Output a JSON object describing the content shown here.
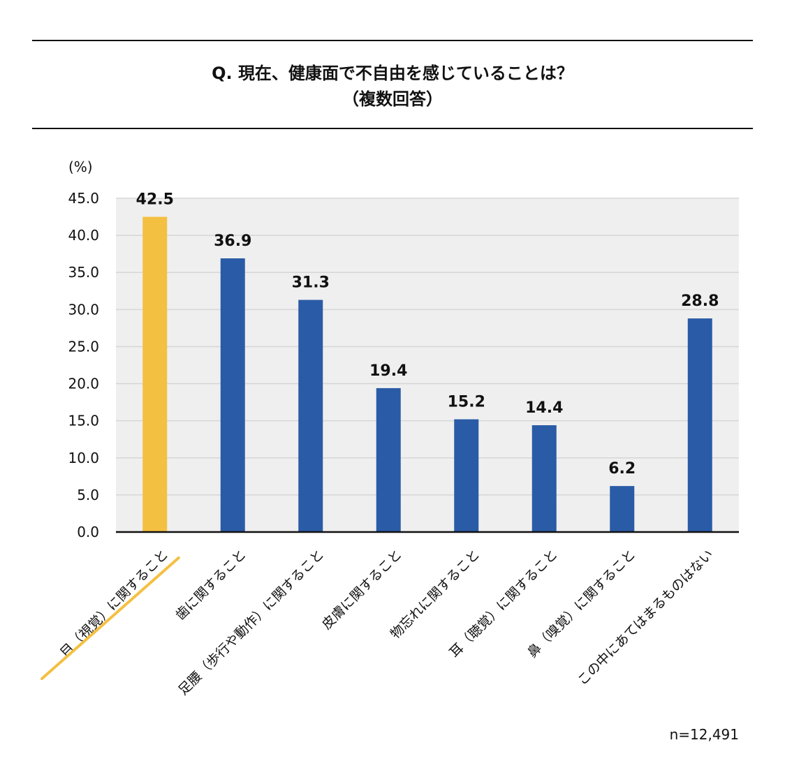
{
  "question": {
    "line1": "Q.  現在、健康面で不自由を感じていることは？",
    "line2": "（複数回答）"
  },
  "sample_note": "n=12,491",
  "colors": {
    "highlight": "#F4C042",
    "bar": "#2A5BA6",
    "plot_bg": "#EFEFEF",
    "grid": "#D6D6D6"
  },
  "chart_data": {
    "type": "bar",
    "title": "Q.  現在、健康面で不自由を感じていることは？（複数回答）",
    "ylabel": "(%)",
    "ylim": [
      0,
      45
    ],
    "yticks": [
      "0.0",
      "5.0",
      "10.0",
      "15.0",
      "20.0",
      "25.0",
      "30.0",
      "35.0",
      "40.0",
      "45.0"
    ],
    "grid": true,
    "categories": [
      "目（視覚）に関すること",
      "歯に関すること",
      "足腰（歩行や動作）に関すること",
      "皮膚に関すること",
      "物忘れに関すること",
      "耳（聴覚）に関すること",
      "鼻（嗅覚）に関すること",
      "この中にあてはまるものはない"
    ],
    "values": [
      42.5,
      36.9,
      31.3,
      19.4,
      15.2,
      14.4,
      6.2,
      28.8
    ],
    "value_labels": [
      "42.5",
      "36.9",
      "31.3",
      "19.4",
      "15.2",
      "14.4",
      "6.2",
      "28.8"
    ],
    "highlight_index": 0
  }
}
